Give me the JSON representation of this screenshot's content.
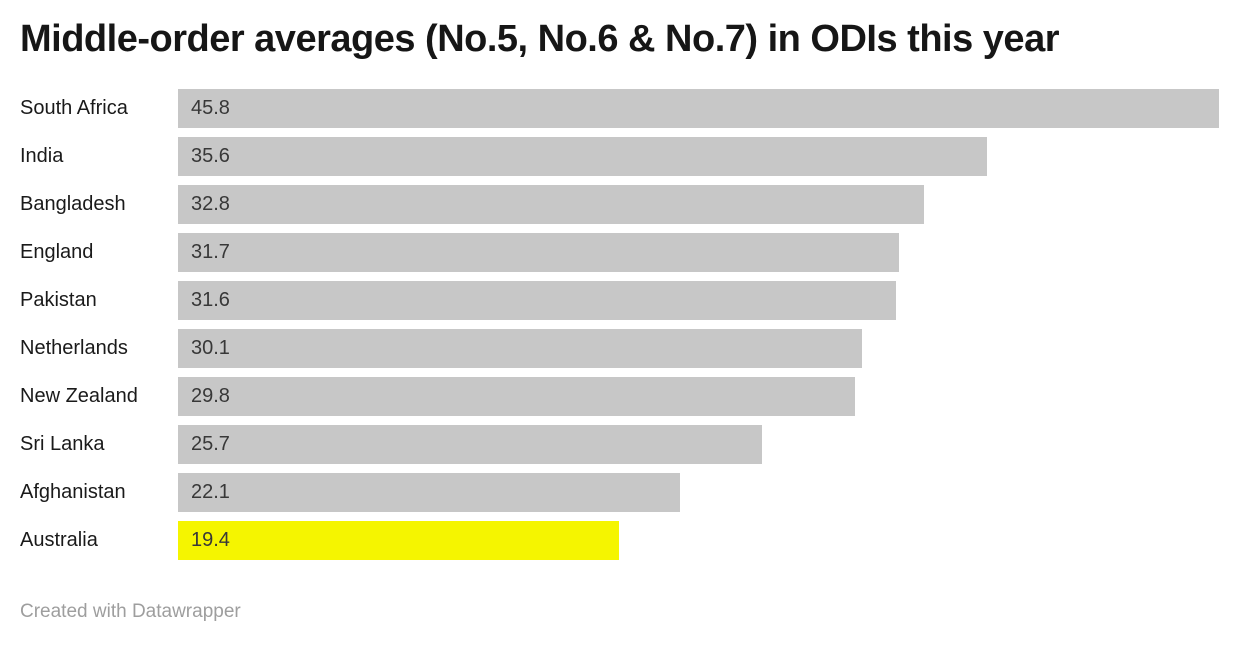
{
  "title": "Middle-order averages (No.5, No.6 & No.7) in ODIs this year",
  "footer": "Created with Datawrapper",
  "chart_data": {
    "type": "bar",
    "orientation": "horizontal",
    "title": "Middle-order averages (No.5, No.6 & No.7) in ODIs this year",
    "categories": [
      "South Africa",
      "India",
      "Bangladesh",
      "England",
      "Pakistan",
      "Netherlands",
      "New Zealand",
      "Sri Lanka",
      "Afghanistan",
      "Australia"
    ],
    "values": [
      45.8,
      35.6,
      32.8,
      31.7,
      31.6,
      30.1,
      29.8,
      25.7,
      22.1,
      19.4
    ],
    "value_labels": [
      "45.8",
      "35.6",
      "32.8",
      "31.7",
      "31.6",
      "30.1",
      "29.8",
      "25.7",
      "22.1",
      "19.4"
    ],
    "xlabel": "",
    "ylabel": "",
    "xlim": [
      0,
      45.8
    ],
    "grid": false,
    "legend": false,
    "highlight_category": "Australia",
    "bar_color": "#c7c7c7",
    "highlight_color": "#f5f500",
    "label_color": "#1a1a1a",
    "value_color": "#383838",
    "attribution": "Created with Datawrapper"
  }
}
